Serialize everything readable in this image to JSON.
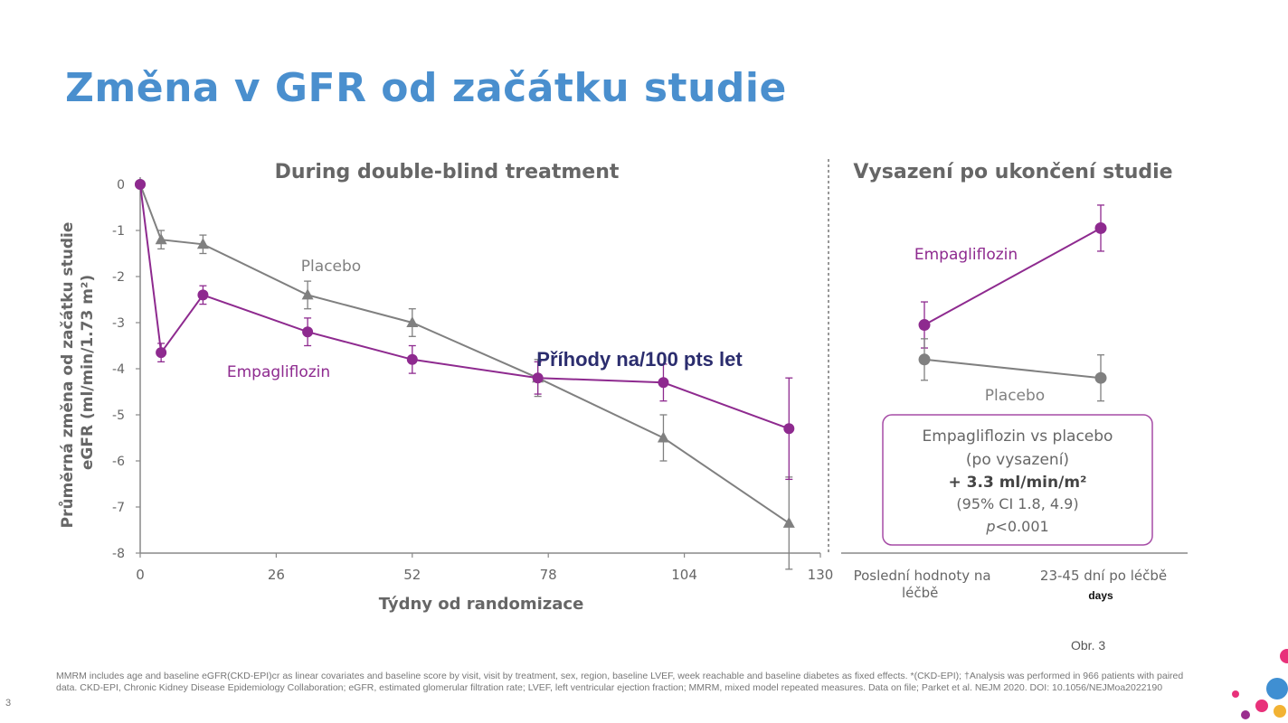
{
  "slide": {
    "title": "Změna v GFR od začátku studie",
    "fig_ref": "Obr. 3",
    "page_number": "3",
    "footnote": "MMRM includes age and baseline eGFR(CKD-EPI)cr as linear covariates and baseline score by visit, visit by treatment, sex, region, baseline LVEF, week reachable and baseline diabetes as fixed effects. *(CKD-EPI); †Analysis was performed in 966 patients with paired data. CKD-EPI, Chronic Kidney Disease Epidemiology Collaboration; eGFR, estimated glomerular filtration rate; LVEF, left ventricular ejection fraction; MMRM, mixed model repeated measures. Data on file; Parket et al. NEJM 2020. DOI: 10.1056/NEJMoa2022190",
    "overlay_text": "Příhody na/100 pts let"
  },
  "colors": {
    "empagliflozin": "#8e2a8f",
    "placebo": "#808080",
    "title": "#4a8fce",
    "text": "#666666",
    "box_border": "#a64ca6"
  },
  "chart_data": [
    {
      "type": "line",
      "title": "During double-blind treatment",
      "xlabel": "Týdny od randomizace",
      "ylabel": "Průměrná změna od začátku studie eGFR (ml/min/1.73 m²)",
      "xlim": [
        0,
        130
      ],
      "ylim": [
        -8,
        0
      ],
      "xticks": [
        0,
        26,
        52,
        78,
        104,
        130
      ],
      "yticks": [
        0,
        -1,
        -2,
        -3,
        -4,
        -5,
        -6,
        -7,
        -8
      ],
      "series": [
        {
          "name": "Placebo",
          "marker": "triangle",
          "x": [
            0,
            4,
            12,
            32,
            52,
            76,
            100,
            124
          ],
          "y": [
            0,
            -1.2,
            -1.3,
            -2.4,
            -3.0,
            -4.2,
            -5.5,
            -7.35
          ],
          "err": [
            0,
            0.2,
            0.2,
            0.3,
            0.3,
            0.4,
            0.5,
            1.0
          ]
        },
        {
          "name": "Empagliflozin",
          "marker": "circle",
          "x": [
            0,
            4,
            12,
            32,
            52,
            76,
            100,
            124
          ],
          "y": [
            0,
            -3.65,
            -2.4,
            -3.2,
            -3.8,
            -4.2,
            -4.3,
            -5.3
          ],
          "err": [
            0,
            0.2,
            0.2,
            0.3,
            0.3,
            0.35,
            0.4,
            1.1
          ]
        }
      ]
    },
    {
      "type": "line",
      "title": "Vysazení po ukončení studie",
      "categories": [
        "Poslední hodnoty na léčbě",
        "23-45 dní po léčbě"
      ],
      "category_note": "days",
      "ylim": [
        -8,
        0
      ],
      "series": [
        {
          "name": "Empagliflozin",
          "marker": "circle",
          "values": [
            -3.05,
            -0.95
          ],
          "err": [
            0.5,
            0.5
          ]
        },
        {
          "name": "Placebo",
          "marker": "circle",
          "values": [
            -3.8,
            -4.2
          ],
          "err": [
            0.45,
            0.5
          ]
        }
      ],
      "annotation": {
        "line1": "Empagliflozin vs placebo",
        "line2": "(po vysazení)",
        "line3": "+ 3.3 ml/min/m²",
        "line4": "(95% CI 1.8, 4.9)",
        "line5_p": "p",
        "line5_rest": "<0.001"
      }
    }
  ]
}
